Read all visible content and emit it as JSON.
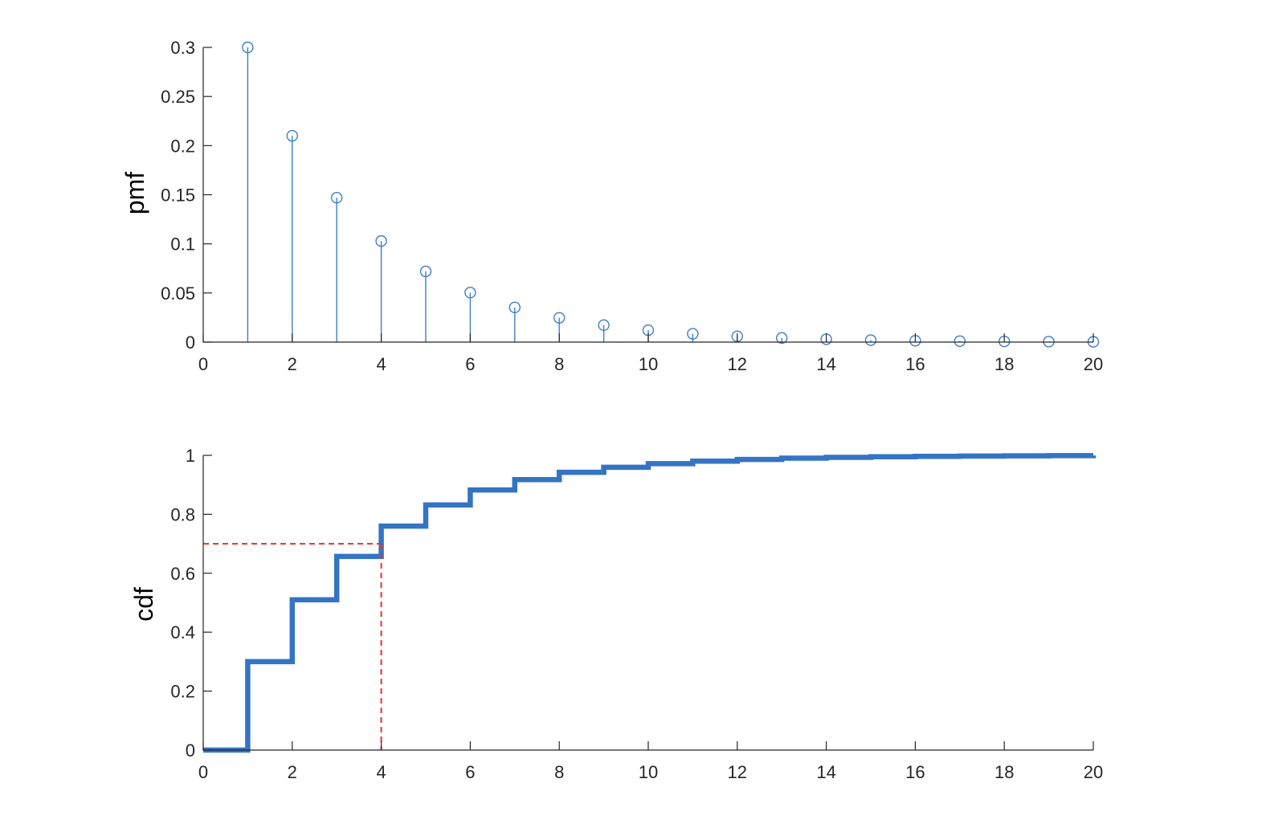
{
  "colors": {
    "stem": "#3d7fc4",
    "cdf": "#3474c4",
    "marker": "#e6322e",
    "axis": "#262626"
  },
  "chart_data": [
    {
      "name": "pmf-plot",
      "type": "stem",
      "ylabel": "pmf",
      "xlim": [
        0,
        20
      ],
      "ylim": [
        0,
        0.3
      ],
      "xticks": [
        "0",
        "2",
        "4",
        "6",
        "8",
        "10",
        "12",
        "14",
        "16",
        "18",
        "20"
      ],
      "yticks": [
        "0",
        "0.05",
        "0.1",
        "0.15",
        "0.2",
        "0.25",
        "0.3"
      ],
      "x": [
        1,
        2,
        3,
        4,
        5,
        6,
        7,
        8,
        9,
        10,
        11,
        12,
        13,
        14,
        15,
        16,
        17,
        18,
        19,
        20
      ],
      "values": [
        0.3,
        0.21,
        0.147,
        0.1029,
        0.072,
        0.0504,
        0.0353,
        0.0247,
        0.0173,
        0.0121,
        0.0085,
        0.0059,
        0.0042,
        0.0029,
        0.002,
        0.0014,
        0.001,
        0.0007,
        0.0005,
        0.0003
      ]
    },
    {
      "name": "cdf-plot",
      "type": "line",
      "ylabel": "cdf",
      "xlim": [
        0,
        20
      ],
      "ylim": [
        0,
        1
      ],
      "xticks": [
        "0",
        "2",
        "4",
        "6",
        "8",
        "10",
        "12",
        "14",
        "16",
        "18",
        "20"
      ],
      "yticks": [
        "0",
        "0.2",
        "0.4",
        "0.6",
        "0.8",
        "1"
      ],
      "x": [
        0,
        1,
        2,
        3,
        4,
        5,
        6,
        7,
        8,
        9,
        10,
        11,
        12,
        13,
        14,
        15,
        16,
        17,
        18,
        19,
        20
      ],
      "values": [
        0,
        0.3,
        0.51,
        0.657,
        0.7599,
        0.8319,
        0.8824,
        0.9176,
        0.9424,
        0.9596,
        0.9718,
        0.9802,
        0.9862,
        0.9903,
        0.9932,
        0.9953,
        0.9967,
        0.9977,
        0.9984,
        0.9989,
        0.9992
      ],
      "quantile_marker": {
        "x": 4,
        "y": 0.7,
        "style": "dashed"
      }
    }
  ]
}
